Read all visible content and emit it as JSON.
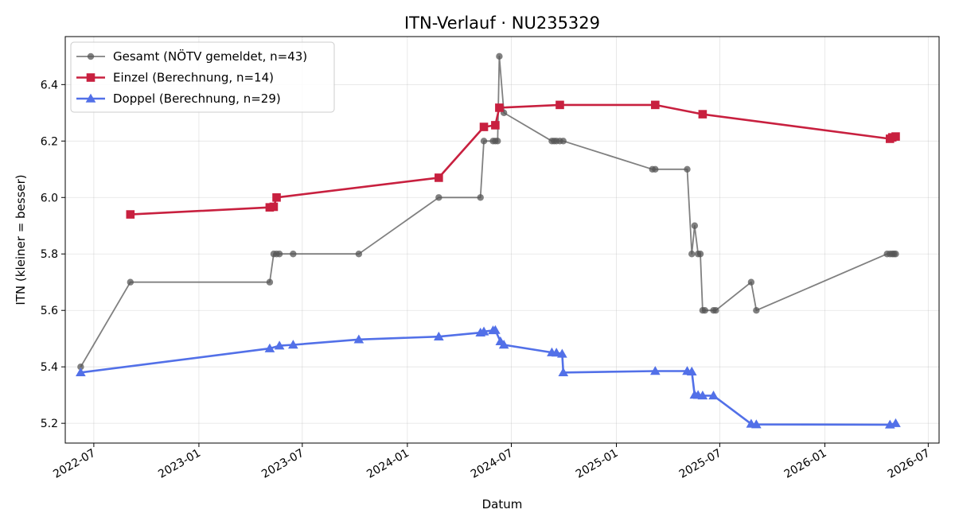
{
  "chart_data": {
    "type": "line",
    "title": "ITN-Verlauf · NU235329",
    "xlabel": "Datum",
    "ylabel": "ITN  (kleiner = besser)",
    "x_axis": "date",
    "xlim": [
      "2022-05-12",
      "2026-07-20"
    ],
    "ylim": [
      5.13,
      6.57
    ],
    "x_ticks": [
      "2022-07",
      "2023-01",
      "2023-07",
      "2024-01",
      "2024-07",
      "2025-01",
      "2025-07",
      "2026-01",
      "2026-07"
    ],
    "y_ticks": [
      5.2,
      5.4,
      5.6,
      5.8,
      6.0,
      6.2,
      6.4
    ],
    "grid": true,
    "legend_position": "top-left",
    "series": [
      {
        "name": "Gesamt (NÖTV gemeldet, n=43)",
        "color": "#555555",
        "marker": "circle",
        "points": [
          [
            "2022-06-08",
            5.4
          ],
          [
            "2022-09-03",
            5.7
          ],
          [
            "2023-05-05",
            5.7
          ],
          [
            "2023-05-12",
            5.8
          ],
          [
            "2023-05-17",
            5.8
          ],
          [
            "2023-05-22",
            5.8
          ],
          [
            "2023-06-15",
            5.8
          ],
          [
            "2023-10-08",
            5.8
          ],
          [
            "2024-02-25",
            6.0
          ],
          [
            "2024-05-08",
            6.0
          ],
          [
            "2024-05-14",
            6.2
          ],
          [
            "2024-05-30",
            6.2
          ],
          [
            "2024-06-03",
            6.2
          ],
          [
            "2024-06-07",
            6.2
          ],
          [
            "2024-06-10",
            6.5
          ],
          [
            "2024-06-18",
            6.3
          ],
          [
            "2024-09-10",
            6.2
          ],
          [
            "2024-09-14",
            6.2
          ],
          [
            "2024-09-18",
            6.2
          ],
          [
            "2024-09-24",
            6.2
          ],
          [
            "2024-09-30",
            6.2
          ],
          [
            "2025-03-05",
            6.1
          ],
          [
            "2025-03-10",
            6.1
          ],
          [
            "2025-05-05",
            6.1
          ],
          [
            "2025-05-13",
            5.8
          ],
          [
            "2025-05-18",
            5.9
          ],
          [
            "2025-05-24",
            5.8
          ],
          [
            "2025-05-28",
            5.8
          ],
          [
            "2025-06-01",
            5.6
          ],
          [
            "2025-06-05",
            5.6
          ],
          [
            "2025-06-20",
            5.6
          ],
          [
            "2025-06-24",
            5.6
          ],
          [
            "2025-08-25",
            5.7
          ],
          [
            "2025-09-03",
            5.6
          ],
          [
            "2026-04-20",
            5.8
          ],
          [
            "2026-04-25",
            5.8
          ],
          [
            "2026-04-29",
            5.8
          ],
          [
            "2026-05-02",
            5.8
          ],
          [
            "2026-05-05",
            5.8
          ]
        ]
      },
      {
        "name": "Einzel (Berechnung, n=14)",
        "color": "#c8203f",
        "marker": "square",
        "points": [
          [
            "2022-09-03",
            5.94
          ],
          [
            "2023-05-05",
            5.965
          ],
          [
            "2023-05-12",
            5.967
          ],
          [
            "2023-05-17",
            6.0
          ],
          [
            "2024-02-25",
            6.07
          ],
          [
            "2024-05-14",
            6.25
          ],
          [
            "2024-06-03",
            6.256
          ],
          [
            "2024-06-10",
            6.318
          ],
          [
            "2024-09-24",
            6.328
          ],
          [
            "2025-03-10",
            6.328
          ],
          [
            "2025-06-01",
            6.295
          ],
          [
            "2026-04-25",
            6.208
          ],
          [
            "2026-04-29",
            6.213
          ],
          [
            "2026-05-05",
            6.216
          ]
        ]
      },
      {
        "name": "Doppel (Berechnung, n=29)",
        "color": "#5270e8",
        "marker": "triangle",
        "points": [
          [
            "2022-06-08",
            5.38
          ],
          [
            "2023-05-05",
            5.465
          ],
          [
            "2023-05-22",
            5.475
          ],
          [
            "2023-06-15",
            5.478
          ],
          [
            "2023-10-08",
            5.497
          ],
          [
            "2024-02-25",
            5.507
          ],
          [
            "2024-05-08",
            5.521
          ],
          [
            "2024-05-14",
            5.525
          ],
          [
            "2024-05-30",
            5.529
          ],
          [
            "2024-06-03",
            5.53
          ],
          [
            "2024-06-12",
            5.49
          ],
          [
            "2024-06-18",
            5.478
          ],
          [
            "2024-09-10",
            5.451
          ],
          [
            "2024-09-18",
            5.45
          ],
          [
            "2024-09-28",
            5.446
          ],
          [
            "2024-09-30",
            5.38
          ],
          [
            "2025-03-10",
            5.385
          ],
          [
            "2025-05-05",
            5.385
          ],
          [
            "2025-05-13",
            5.383
          ],
          [
            "2025-05-18",
            5.301
          ],
          [
            "2025-05-24",
            5.3
          ],
          [
            "2025-06-01",
            5.298
          ],
          [
            "2025-06-20",
            5.298
          ],
          [
            "2025-08-25",
            5.198
          ],
          [
            "2025-09-03",
            5.196
          ],
          [
            "2026-04-25",
            5.195
          ],
          [
            "2026-05-05",
            5.2
          ]
        ]
      }
    ]
  }
}
